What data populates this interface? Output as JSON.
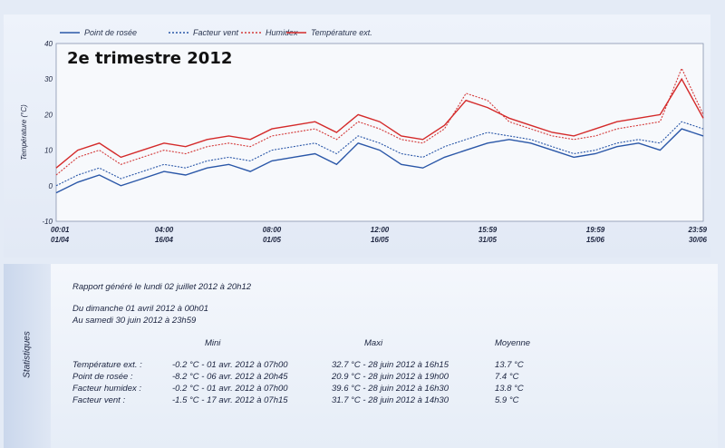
{
  "chart_data": {
    "type": "line",
    "title": "2e trimestre 2012",
    "xlabel": "",
    "ylabel": "Température (°C)",
    "ylim": [
      -10,
      40
    ],
    "yticks": [
      -10,
      0,
      10,
      20,
      30,
      40
    ],
    "x_tick_labels": [
      {
        "time": "00:01",
        "date": "01/04"
      },
      {
        "time": "04:00",
        "date": "16/04"
      },
      {
        "time": "08:00",
        "date": "01/05"
      },
      {
        "time": "12:00",
        "date": "16/05"
      },
      {
        "time": "15:59",
        "date": "31/05"
      },
      {
        "time": "19:59",
        "date": "15/06"
      },
      {
        "time": "23:59",
        "date": "30/06"
      }
    ],
    "grid": true,
    "legend_position": "top",
    "x_dates": [
      "01/04",
      "04/04",
      "07/04",
      "10/04",
      "13/04",
      "16/04",
      "19/04",
      "22/04",
      "25/04",
      "28/04",
      "01/05",
      "04/05",
      "07/05",
      "10/05",
      "13/05",
      "16/05",
      "19/05",
      "22/05",
      "25/05",
      "28/05",
      "31/05",
      "03/06",
      "06/06",
      "09/06",
      "12/06",
      "15/06",
      "18/06",
      "21/06",
      "24/06",
      "27/06",
      "30/06"
    ],
    "series": [
      {
        "name": "Point de rosée",
        "color": "#2a57a8",
        "style": "solid",
        "values": [
          -2,
          1,
          3,
          0,
          2,
          4,
          3,
          5,
          6,
          4,
          7,
          8,
          9,
          6,
          12,
          10,
          6,
          5,
          8,
          10,
          12,
          13,
          12,
          10,
          8,
          9,
          11,
          12,
          10,
          16,
          14
        ]
      },
      {
        "name": "Facteur vent",
        "color": "#2a57a8",
        "style": "dotted",
        "values": [
          0,
          3,
          5,
          2,
          4,
          6,
          5,
          7,
          8,
          7,
          10,
          11,
          12,
          9,
          14,
          12,
          9,
          8,
          11,
          13,
          15,
          14,
          13,
          11,
          9,
          10,
          12,
          13,
          12,
          18,
          16
        ]
      },
      {
        "name": "Humidex",
        "color": "#d43a3a",
        "style": "dotted",
        "values": [
          3,
          8,
          10,
          6,
          8,
          10,
          9,
          11,
          12,
          11,
          14,
          15,
          16,
          13,
          18,
          16,
          13,
          12,
          16,
          26,
          24,
          18,
          16,
          14,
          13,
          14,
          16,
          17,
          18,
          33,
          20
        ]
      },
      {
        "name": "Température ext.",
        "color": "#d42a2a",
        "style": "solid",
        "values": [
          5,
          10,
          12,
          8,
          10,
          12,
          11,
          13,
          14,
          13,
          16,
          17,
          18,
          15,
          20,
          18,
          14,
          13,
          17,
          24,
          22,
          19,
          17,
          15,
          14,
          16,
          18,
          19,
          20,
          30,
          19
        ]
      }
    ]
  },
  "stats": {
    "tab_label": "Statistiques",
    "report_line": "Rapport généré le lundi 02 juillet 2012 à 20h12",
    "from_line": "Du dimanche 01 avril 2012 à 00h01",
    "to_line": "Au samedi 30 juin 2012 à 23h59",
    "headers": {
      "mini": "Mini",
      "maxi": "Maxi",
      "moyenne": "Moyenne"
    },
    "rows": [
      {
        "label": "Température ext. :",
        "mini": "-0.2 °C - 01 avr. 2012 à 07h00",
        "maxi": "32.7 °C - 28 juin 2012 à 16h15",
        "moyenne": "13.7 °C"
      },
      {
        "label": "Point de rosée :",
        "mini": "-8.2 °C - 06 avr. 2012 à 20h45",
        "maxi": "20.9 °C - 28 juin 2012 à 19h00",
        "moyenne": "7.4 °C"
      },
      {
        "label": "Facteur humidex :",
        "mini": "-0.2 °C - 01 avr. 2012 à 07h00",
        "maxi": "39.6 °C - 28 juin 2012 à 16h30",
        "moyenne": "13.8 °C"
      },
      {
        "label": "Facteur vent :",
        "mini": "-1.5 °C - 17 avr. 2012 à 07h15",
        "maxi": "31.7 °C - 28 juin 2012 à 14h30",
        "moyenne": "5.9 °C"
      }
    ]
  }
}
